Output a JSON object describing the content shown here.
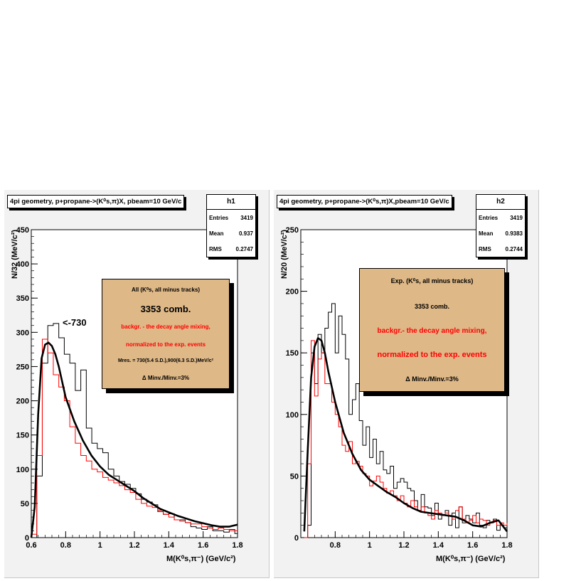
{
  "chart_data": [
    {
      "type": "line",
      "hist_name": "h1",
      "title": "4pi geometry, p+propane->(K⁰s,π)X, pbeam=10 GeV/c",
      "stats": {
        "entries_label": "Entries",
        "entries": "3419",
        "mean_label": "Mean",
        "mean": "0.937",
        "rms_label": "RMS",
        "rms": "0.2747"
      },
      "ylabel": "N/32 (MeV/c²)",
      "xlabel": "M(K⁰s,π⁻) (GeV/c²)",
      "xlim": [
        0.6,
        1.8
      ],
      "ylim": [
        0,
        450
      ],
      "xticks": [
        "0.6",
        "0.8",
        "1",
        "1.2",
        "1.4",
        "1.6",
        "1.8"
      ],
      "yticks": [
        "0",
        "50",
        "100",
        "150",
        "200",
        "250",
        "300",
        "350",
        "400",
        "450"
      ],
      "annotation": "<-730",
      "legend": {
        "line1": "All (K⁰s, all minus tracks)",
        "line2": "3353 comb.",
        "line3": "backgr. - the decay angle mixing,",
        "line4": "normalized to the exp. events",
        "line5": "Mres. = 730(5.4 S.D.),900(6.3 S.D.)MeV/c²",
        "line6": "Δ Minv./Minv.=3%"
      },
      "series": [
        {
          "name": "experiment",
          "color": "#000000",
          "bin_width": 0.032,
          "x0": 0.6,
          "values": [
            0,
            90,
            255,
            310,
            313,
            292,
            268,
            255,
            215,
            245,
            160,
            138,
            130,
            124,
            100,
            90,
            82,
            78,
            72,
            64,
            56,
            52,
            48,
            38,
            34,
            35,
            26,
            26,
            22,
            16,
            14,
            12,
            16,
            10,
            10,
            8,
            12,
            6
          ]
        },
        {
          "name": "background",
          "color": "#ff0000",
          "bin_width": 0.032,
          "x0": 0.6,
          "values": [
            5,
            120,
            290,
            270,
            238,
            220,
            200,
            162,
            138,
            120,
            112,
            100,
            96,
            88,
            84,
            80,
            76,
            70,
            66,
            56,
            50,
            46,
            44,
            40,
            34,
            30,
            26,
            24,
            22,
            20,
            20,
            16,
            14,
            12,
            14,
            12,
            10,
            10
          ]
        },
        {
          "name": "fit",
          "color": "#000000",
          "x": [
            0.6,
            0.62,
            0.64,
            0.66,
            0.68,
            0.7,
            0.72,
            0.74,
            0.76,
            0.8,
            0.85,
            0.9,
            0.95,
            1.0,
            1.05,
            1.1,
            1.15,
            1.2,
            1.25,
            1.3,
            1.35,
            1.4,
            1.45,
            1.5,
            1.55,
            1.6,
            1.65,
            1.7,
            1.75,
            1.8
          ],
          "y": [
            0,
            45,
            180,
            262,
            282,
            285,
            280,
            268,
            250,
            205,
            170,
            142,
            120,
            104,
            92,
            84,
            76,
            68,
            58,
            50,
            42,
            37,
            32,
            28,
            24,
            21,
            18,
            16,
            16,
            19
          ]
        }
      ]
    },
    {
      "type": "line",
      "hist_name": "h2",
      "title": "4pi geometry, p+propane->(K⁰s,π)X,pbeam=10 GeV/c",
      "stats": {
        "entries_label": "Entries",
        "entries": "3419",
        "mean_label": "Mean",
        "mean": "0.9383",
        "rms_label": "RMS",
        "rms": "0.2744"
      },
      "ylabel": "N/20 (MeV/c²)",
      "xlabel": "M(K⁰s,π⁻) (GeV/c²)",
      "xlim": [
        0.6,
        1.8
      ],
      "ylim": [
        0,
        250
      ],
      "xticks": [
        "0.8",
        "1",
        "1.2",
        "1.4",
        "1.6",
        "1.8"
      ],
      "yticks": [
        "0",
        "50",
        "100",
        "150",
        "200",
        "250"
      ],
      "legend": {
        "line1": "Exp. (K⁰s, all minus tracks)",
        "line2": "3353 comb.",
        "line3": "backgr.- the decay angle mixing,",
        "line4": "normalized to the exp. events",
        "line5": "Δ Minv./Minv.=3%"
      },
      "series": [
        {
          "name": "experiment",
          "color": "#000000",
          "bin_width": 0.02,
          "x0": 0.62,
          "values": [
            0,
            10,
            150,
            125,
            165,
            150,
            170,
            183,
            190,
            150,
            180,
            165,
            145,
            100,
            112,
            125,
            95,
            75,
            90,
            65,
            80,
            60,
            70,
            55,
            52,
            58,
            40,
            45,
            48,
            45,
            40,
            38,
            30,
            22,
            35,
            25,
            24,
            18,
            28,
            15,
            18,
            22,
            10,
            20,
            8,
            25,
            12,
            18,
            15,
            12,
            20,
            10,
            8,
            14,
            12,
            15,
            6,
            10,
            8,
            5
          ]
        },
        {
          "name": "background",
          "color": "#ff0000",
          "bin_width": 0.02,
          "x0": 0.62,
          "values": [
            0,
            60,
            160,
            115,
            145,
            150,
            125,
            125,
            110,
            100,
            90,
            75,
            70,
            78,
            60,
            62,
            58,
            52,
            50,
            42,
            46,
            50,
            45,
            40,
            36,
            38,
            34,
            30,
            34,
            28,
            25,
            30,
            25,
            22,
            25,
            20,
            18,
            15,
            22,
            20,
            18,
            20,
            18,
            15,
            22,
            25,
            15,
            12,
            14,
            18,
            12,
            15,
            14,
            10,
            12,
            14,
            10,
            12,
            10,
            12
          ]
        },
        {
          "name": "fit",
          "color": "#000000",
          "x": [
            0.62,
            0.64,
            0.66,
            0.68,
            0.7,
            0.72,
            0.74,
            0.76,
            0.8,
            0.85,
            0.9,
            0.95,
            1.0,
            1.05,
            1.1,
            1.15,
            1.2,
            1.25,
            1.3,
            1.35,
            1.4,
            1.45,
            1.5,
            1.55,
            1.6,
            1.65,
            1.7,
            1.75,
            1.8
          ],
          "y": [
            5,
            70,
            130,
            155,
            162,
            160,
            150,
            135,
            110,
            85,
            68,
            55,
            47,
            42,
            37,
            33,
            28,
            24,
            21,
            20,
            19,
            18,
            17,
            14,
            10,
            9,
            12,
            14,
            5
          ]
        }
      ]
    }
  ]
}
